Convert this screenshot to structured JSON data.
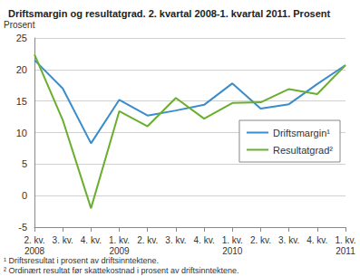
{
  "chart_data": {
    "type": "line",
    "title": "Driftsmargin og resultatgrad. 2. kvartal 2008-1. kvartal 2011. Prosent",
    "ylabel": "Prosent",
    "categories": [
      "2. kv.\n2008",
      "3. kv.",
      "4. kv.",
      "1. kv.\n2009",
      "2. kv.",
      "3. kv.",
      "4. kv.",
      "1. kv.\n2010",
      "2. kv.",
      "3. kv.",
      "4. kv.",
      "1. kv.\n2011"
    ],
    "series": [
      {
        "name": "Driftsmargin¹",
        "color": "#3a8ccb",
        "values": [
          21.5,
          17.0,
          8.3,
          15.2,
          12.7,
          13.5,
          14.4,
          17.8,
          13.8,
          14.5,
          17.7,
          20.7
        ]
      },
      {
        "name": "Resultatgrad²",
        "color": "#6aae2e",
        "values": [
          22.4,
          12.0,
          -2.0,
          13.4,
          11.0,
          15.5,
          12.2,
          14.7,
          14.8,
          16.9,
          16.1,
          20.7
        ]
      }
    ],
    "ylim": [
      -5,
      25
    ],
    "yticks": [
      -5,
      0,
      5,
      10,
      15,
      20,
      25
    ],
    "grid": true,
    "legend": "right",
    "annotations": [
      "¹ Driftsresultat i prosent av driftsinntektene.",
      "² Ordinært resultat før skattekostnad i prosent av driftsinntektene."
    ]
  }
}
